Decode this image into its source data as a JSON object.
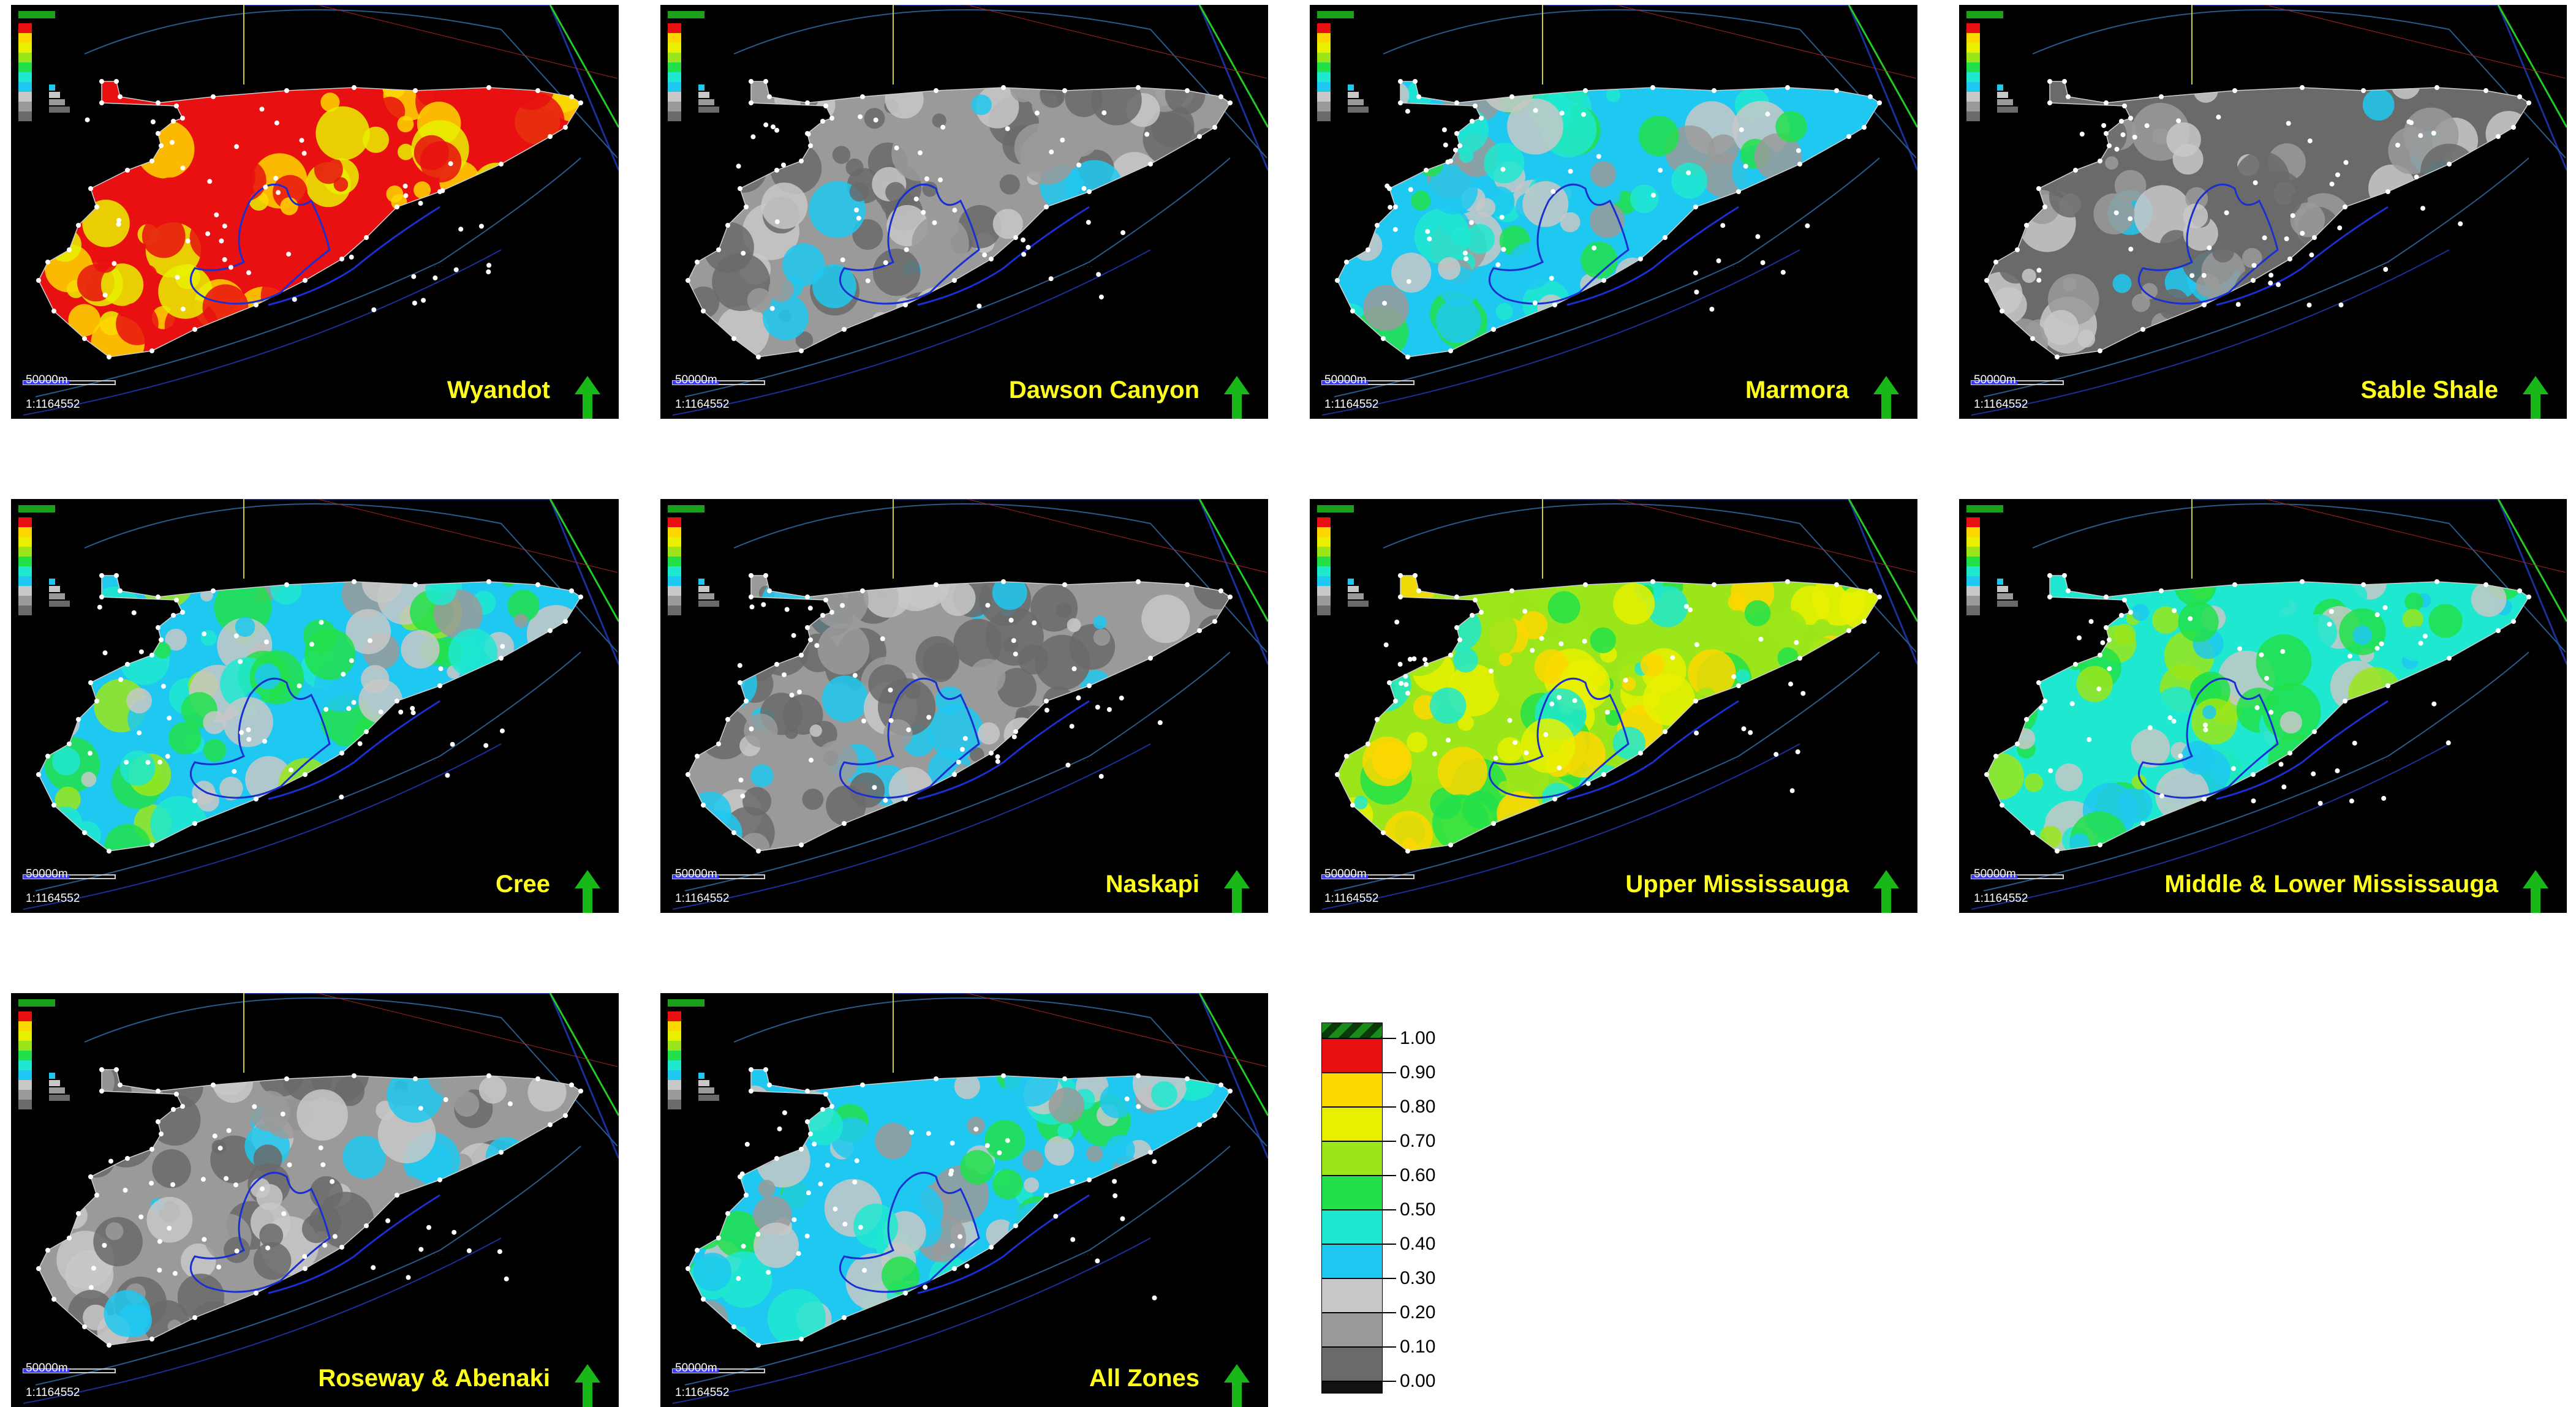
{
  "panels": [
    {
      "label": "Wyandot",
      "scale": "50000m",
      "ratio": "1:1164552",
      "fill_class": 0.95
    },
    {
      "label": "Dawson Canyon",
      "scale": "50000m",
      "ratio": "1:1164552",
      "fill_class": 0.15
    },
    {
      "label": "Marmora",
      "scale": "50000m",
      "ratio": "1:1164552",
      "fill_class": 0.35
    },
    {
      "label": "Sable Shale",
      "scale": "50000m",
      "ratio": "1:1164552",
      "fill_class": 0.1
    },
    {
      "label": "Cree",
      "scale": "50000m",
      "ratio": "1:1164552",
      "fill_class": 0.4
    },
    {
      "label": "Naskapi",
      "scale": "50000m",
      "ratio": "1:1164552",
      "fill_class": 0.15
    },
    {
      "label": "Upper Mississauga",
      "scale": "50000m",
      "ratio": "1:1164552",
      "fill_class": 0.65
    },
    {
      "label": "Middle & Lower Mississauga",
      "scale": "50000m",
      "ratio": "1:1164552",
      "fill_class": 0.45
    },
    {
      "label": "Roseway & Abenaki",
      "scale": "50000m",
      "ratio": "1:1164552",
      "fill_class": 0.15
    },
    {
      "label": "All Zones",
      "scale": "50000m",
      "ratio": "1:1164552",
      "fill_class": 0.35
    }
  ],
  "legend": {
    "ticks": [
      "1.00",
      "0.90",
      "0.80",
      "0.70",
      "0.60",
      "0.50",
      "0.40",
      "0.30",
      "0.20",
      "0.10",
      "0.00"
    ],
    "colors": [
      "#e81010",
      "#ffd700",
      "#e8f000",
      "#9be61a",
      "#22e04a",
      "#1ee8d0",
      "#1ec8f0",
      "#c8c8c8",
      "#9a9a9a",
      "#6a6a6a"
    ]
  }
}
